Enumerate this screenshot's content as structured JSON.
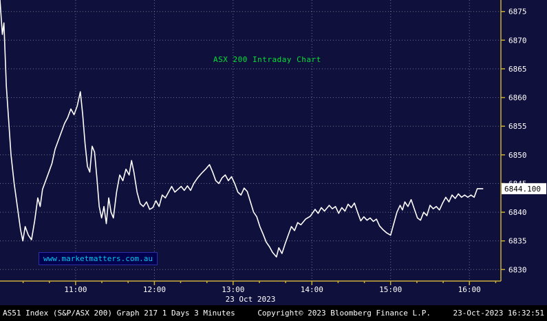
{
  "colors": {
    "background": "#10103c",
    "grid": "#c2c2d8",
    "axis": "#c9b037",
    "series_line": "#ffffff",
    "tick_label": "#ffffff",
    "title_text": "#00e135",
    "watermark_text": "#00c8f0",
    "price_flag_bg": "#ffffff",
    "price_flag_text": "#000000"
  },
  "chart_data": {
    "type": "line",
    "title": "ASX 200 Intraday Chart",
    "xlabel": "23 Oct 2023",
    "ylabel": "",
    "xlim": [
      10.04,
      16.4
    ],
    "ylim": [
      6828,
      6877
    ],
    "grid": true,
    "x_ticks": [
      {
        "t": 11,
        "label": "11:00"
      },
      {
        "t": 12,
        "label": "12:00"
      },
      {
        "t": 13,
        "label": "13:00"
      },
      {
        "t": 14,
        "label": "14:00"
      },
      {
        "t": 15,
        "label": "15:00"
      },
      {
        "t": 16,
        "label": "16:00"
      }
    ],
    "y_ticks": [
      6830,
      6835,
      6840,
      6845,
      6850,
      6855,
      6860,
      6865,
      6870,
      6875
    ],
    "date_label": "23 Oct 2023",
    "last_price": 6844.1,
    "last_price_label": "6844.100",
    "series": [
      {
        "name": "AS51 Index intraday",
        "points": [
          [
            10.04,
            6877
          ],
          [
            10.07,
            6871
          ],
          [
            10.09,
            6873
          ],
          [
            10.12,
            6862
          ],
          [
            10.15,
            6856
          ],
          [
            10.18,
            6850
          ],
          [
            10.22,
            6845
          ],
          [
            10.26,
            6841
          ],
          [
            10.3,
            6837
          ],
          [
            10.33,
            6835
          ],
          [
            10.36,
            6837.5
          ],
          [
            10.4,
            6836
          ],
          [
            10.44,
            6835.2
          ],
          [
            10.48,
            6838.5
          ],
          [
            10.52,
            6842.5
          ],
          [
            10.55,
            6841
          ],
          [
            10.58,
            6844
          ],
          [
            10.62,
            6845.5
          ],
          [
            10.66,
            6847
          ],
          [
            10.7,
            6848.5
          ],
          [
            10.74,
            6851
          ],
          [
            10.78,
            6852.5
          ],
          [
            10.82,
            6854
          ],
          [
            10.86,
            6855.5
          ],
          [
            10.9,
            6856.5
          ],
          [
            10.94,
            6858
          ],
          [
            10.98,
            6857
          ],
          [
            11.02,
            6858.5
          ],
          [
            11.06,
            6861
          ],
          [
            11.09,
            6857
          ],
          [
            11.12,
            6852
          ],
          [
            11.15,
            6848
          ],
          [
            11.18,
            6847
          ],
          [
            11.21,
            6851.5
          ],
          [
            11.24,
            6850.5
          ],
          [
            11.27,
            6846
          ],
          [
            11.3,
            6841
          ],
          [
            11.33,
            6839
          ],
          [
            11.36,
            6841
          ],
          [
            11.39,
            6838
          ],
          [
            11.42,
            6842.5
          ],
          [
            11.45,
            6840
          ],
          [
            11.48,
            6839
          ],
          [
            11.52,
            6843.5
          ],
          [
            11.56,
            6846.5
          ],
          [
            11.6,
            6845.5
          ],
          [
            11.64,
            6847.5
          ],
          [
            11.68,
            6846.5
          ],
          [
            11.71,
            6849
          ],
          [
            11.74,
            6847
          ],
          [
            11.78,
            6843.5
          ],
          [
            11.82,
            6841.5
          ],
          [
            11.86,
            6841
          ],
          [
            11.9,
            6841.8
          ],
          [
            11.94,
            6840.5
          ],
          [
            11.98,
            6840.8
          ],
          [
            12.02,
            6842
          ],
          [
            12.06,
            6841
          ],
          [
            12.1,
            6843
          ],
          [
            12.14,
            6842.5
          ],
          [
            12.18,
            6843.5
          ],
          [
            12.22,
            6844.5
          ],
          [
            12.26,
            6843.5
          ],
          [
            12.3,
            6844
          ],
          [
            12.34,
            6844.5
          ],
          [
            12.38,
            6843.8
          ],
          [
            12.42,
            6844.6
          ],
          [
            12.46,
            6843.8
          ],
          [
            12.5,
            6845
          ],
          [
            12.55,
            6846
          ],
          [
            12.6,
            6846.8
          ],
          [
            12.65,
            6847.5
          ],
          [
            12.7,
            6848.3
          ],
          [
            12.74,
            6847
          ],
          [
            12.78,
            6845.5
          ],
          [
            12.82,
            6845
          ],
          [
            12.86,
            6846
          ],
          [
            12.9,
            6846.5
          ],
          [
            12.94,
            6845.5
          ],
          [
            12.98,
            6846.2
          ],
          [
            13.02,
            6845
          ],
          [
            13.06,
            6843.5
          ],
          [
            13.1,
            6843
          ],
          [
            13.14,
            6844.2
          ],
          [
            13.18,
            6843.6
          ],
          [
            13.22,
            6841.8
          ],
          [
            13.26,
            6840
          ],
          [
            13.3,
            6839.2
          ],
          [
            13.34,
            6837.5
          ],
          [
            13.38,
            6836.2
          ],
          [
            13.42,
            6834.8
          ],
          [
            13.46,
            6834
          ],
          [
            13.5,
            6833
          ],
          [
            13.55,
            6832.2
          ],
          [
            13.58,
            6833.8
          ],
          [
            13.62,
            6832.8
          ],
          [
            13.66,
            6834.5
          ],
          [
            13.7,
            6836
          ],
          [
            13.74,
            6837.5
          ],
          [
            13.78,
            6836.8
          ],
          [
            13.82,
            6838.2
          ],
          [
            13.86,
            6837.8
          ],
          [
            13.92,
            6838.8
          ],
          [
            13.98,
            6839.3
          ],
          [
            14.04,
            6840.5
          ],
          [
            14.08,
            6839.8
          ],
          [
            14.12,
            6840.8
          ],
          [
            14.16,
            6840.2
          ],
          [
            14.22,
            6841.2
          ],
          [
            14.26,
            6840.6
          ],
          [
            14.3,
            6841
          ],
          [
            14.34,
            6839.8
          ],
          [
            14.38,
            6840.8
          ],
          [
            14.42,
            6840.2
          ],
          [
            14.46,
            6841.4
          ],
          [
            14.5,
            6840.8
          ],
          [
            14.54,
            6841.6
          ],
          [
            14.58,
            6840
          ],
          [
            14.62,
            6838.5
          ],
          [
            14.66,
            6839.2
          ],
          [
            14.7,
            6838.6
          ],
          [
            14.74,
            6839
          ],
          [
            14.78,
            6838.4
          ],
          [
            14.82,
            6838.8
          ],
          [
            14.86,
            6837.6
          ],
          [
            14.9,
            6837
          ],
          [
            14.95,
            6836.4
          ],
          [
            15.0,
            6836
          ],
          [
            15.04,
            6838
          ],
          [
            15.08,
            6840
          ],
          [
            15.12,
            6841.2
          ],
          [
            15.15,
            6840.4
          ],
          [
            15.18,
            6841.8
          ],
          [
            15.22,
            6841
          ],
          [
            15.26,
            6842.2
          ],
          [
            15.3,
            6840.6
          ],
          [
            15.34,
            6839
          ],
          [
            15.38,
            6838.6
          ],
          [
            15.42,
            6840
          ],
          [
            15.46,
            6839.4
          ],
          [
            15.5,
            6841.2
          ],
          [
            15.54,
            6840.6
          ],
          [
            15.58,
            6841
          ],
          [
            15.62,
            6840.4
          ],
          [
            15.66,
            6841.6
          ],
          [
            15.7,
            6842.6
          ],
          [
            15.74,
            6841.8
          ],
          [
            15.78,
            6843
          ],
          [
            15.82,
            6842.4
          ],
          [
            15.86,
            6843.2
          ],
          [
            15.9,
            6842.6
          ],
          [
            15.94,
            6843
          ],
          [
            15.98,
            6842.6
          ],
          [
            16.02,
            6843
          ],
          [
            16.06,
            6842.6
          ],
          [
            16.1,
            6844.1
          ],
          [
            16.17,
            6844.1
          ]
        ]
      }
    ]
  },
  "watermark": {
    "text": "www.marketmatters.com.au"
  },
  "status_bar": {
    "left": "AS51 Index (S&P/ASX 200) Graph 217 1 Days 3 Minutes",
    "center": "Copyright© 2023 Bloomberg Finance L.P.",
    "right": "23-Oct-2023 16:32:51"
  }
}
